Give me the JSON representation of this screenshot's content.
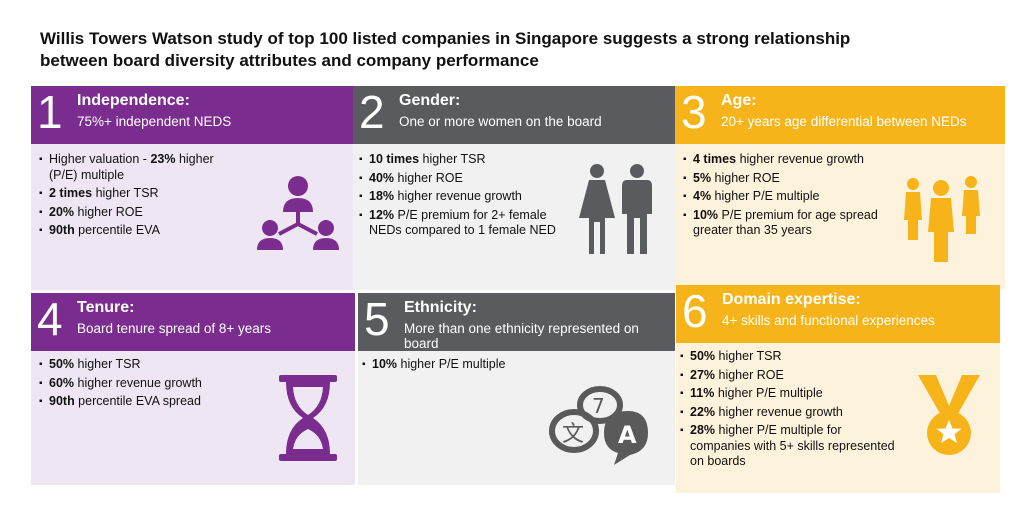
{
  "title": {
    "line1": "Willis  Towers Watson study of top 100 listed companies in Singapore suggests a strong relationship",
    "line2": "between board diversity attributes and company performance"
  },
  "colors": {
    "purple": "#7b2c8f",
    "grey": "#595b5e",
    "yellow": "#f6b41a"
  },
  "cards": [
    {
      "number": "1",
      "heading": "Independence:",
      "subtitle": "75%+  independent NEDS",
      "icon": "org-network-icon",
      "items": [
        {
          "bold": "",
          "pre": "Higher valuation - ",
          "bold2": "23%",
          "text": " higher (P/E) multiple"
        },
        {
          "bold": "2 times",
          "text": " higher TSR"
        },
        {
          "bold": "20%",
          "text": " higher ROE"
        },
        {
          "bold": "90th",
          "text": " percentile EVA"
        }
      ]
    },
    {
      "number": "2",
      "heading": "Gender:",
      "subtitle": "One or more women on the board",
      "icon": "woman-man-icon",
      "items": [
        {
          "bold": "10 times",
          "text": " higher TSR"
        },
        {
          "bold": "40%",
          "text": " higher ROE"
        },
        {
          "bold": "18%",
          "text": " higher revenue growth"
        },
        {
          "bold": "12%",
          "text": " P/E premium for 2+ female NEDs compared to 1 female NED"
        }
      ]
    },
    {
      "number": "3",
      "heading": "Age:",
      "subtitle": "20+ years age differential between NEDs",
      "icon": "people-group-icon",
      "items": [
        {
          "bold": "4 times",
          "text": " higher revenue growth"
        },
        {
          "bold": "5%",
          "text": " higher ROE"
        },
        {
          "bold": "4%",
          "text": " higher P/E multiple"
        },
        {
          "bold": "10%",
          "text": " P/E premium for age spread greater than 35 years"
        }
      ]
    },
    {
      "number": "4",
      "heading": "Tenure:",
      "subtitle": "Board tenure spread of 8+ years",
      "icon": "hourglass-icon",
      "items": [
        {
          "bold": "50%",
          "text": " higher TSR"
        },
        {
          "bold": "60%",
          "text": " higher revenue growth"
        },
        {
          "bold": "90th",
          "text": " percentile EVA spread"
        }
      ]
    },
    {
      "number": "5",
      "heading": "Ethnicity:",
      "subtitle": "More than one ethnicity represented on board",
      "icon": "language-bubbles-icon",
      "items": [
        {
          "bold": "10%",
          "text": " higher P/E multiple"
        }
      ]
    },
    {
      "number": "6",
      "heading": "Domain expertise:",
      "subtitle": "4+ skills and functional experiences",
      "icon": "medal-icon",
      "items": [
        {
          "bold": "50%",
          "text": " higher TSR"
        },
        {
          "bold": "27%",
          "text": " higher ROE"
        },
        {
          "bold": "11%",
          "text": " higher P/E multiple"
        },
        {
          "bold": "22%",
          "text": " higher revenue growth"
        },
        {
          "bold": "28%",
          "text": " higher P/E multiple for companies with 5+ skills represented on boards"
        }
      ]
    }
  ]
}
